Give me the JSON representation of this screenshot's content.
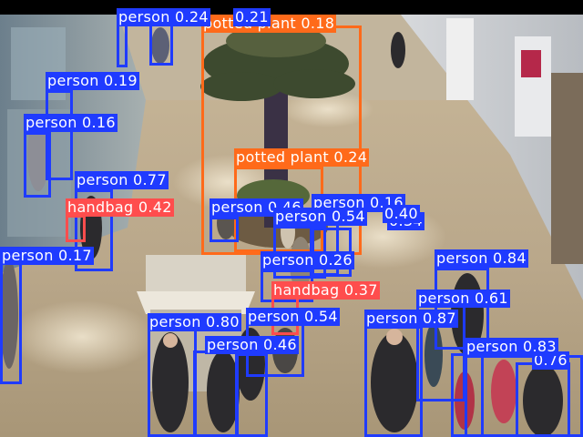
{
  "colors": {
    "person": "#1f3bff",
    "potted_plant": "#ff6a1a",
    "handbag": "#ff4d4d"
  },
  "labels": {
    "p024": "person 0.24",
    "p021": "0.21",
    "pp018": "potted plant 0.18",
    "p019": "person 0.19",
    "p016a": "person 0.16",
    "p077": "person 0.77",
    "hb042": "handbag 0.42",
    "pp024": "potted plant 0.24",
    "p046a": "person 0.46",
    "p016b": "person 0.16",
    "p054a": "person 0.54",
    "p040": "0.40",
    "p034": "0.34",
    "p017": "person 0.17",
    "p026": "person 0.26",
    "hb037": "handbag 0.37",
    "p084": "person 0.84",
    "p061": "person 0.61",
    "p080": "person 0.80",
    "p054b": "person 0.54",
    "p087": "person 0.87",
    "p046b": "person 0.46",
    "p083": "person 0.83",
    "p076": "0.76"
  }
}
